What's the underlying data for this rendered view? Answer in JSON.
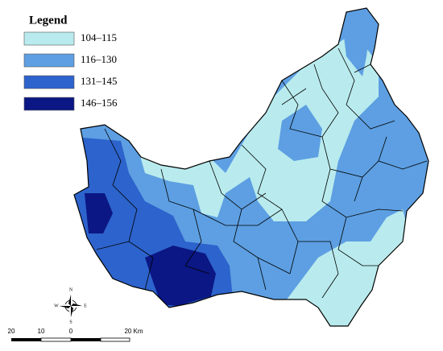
{
  "legend": {
    "title": "Legend",
    "items": [
      {
        "label": "104–115",
        "color": "#b9ebee"
      },
      {
        "label": "116–130",
        "color": "#5d9fe2"
      },
      {
        "label": "131–145",
        "color": "#2d63cc"
      },
      {
        "label": "146–156",
        "color": "#0b1784"
      }
    ]
  },
  "compass": {
    "north": "N",
    "south": "S",
    "east": "E",
    "west": "W"
  },
  "scale_bar": {
    "labels": [
      "20",
      "10",
      "0",
      "20 Km"
    ]
  }
}
